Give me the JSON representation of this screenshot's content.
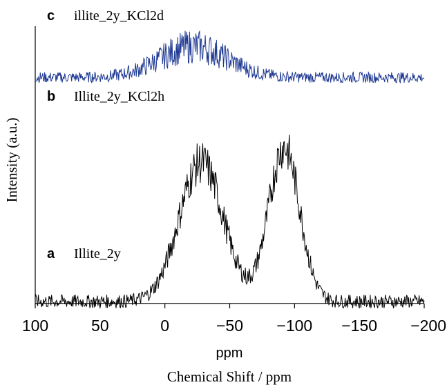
{
  "chart_data": {
    "type": "line",
    "title": "",
    "xlabel": "Chemical Shift / ppm",
    "x_unit_label": "ppm",
    "ylabel": "Intensity (a.u.)",
    "xlim": [
      100,
      -200
    ],
    "x_reversed": true,
    "x_ticks": [
      100,
      50,
      0,
      -50,
      -100,
      -150,
      -200
    ],
    "x_tick_labels": [
      "100",
      "50",
      "0",
      "−50",
      "−100",
      "−150",
      "−200"
    ],
    "y_ticks_shown": false,
    "grid": false,
    "stacked_spectra": true,
    "series": [
      {
        "letter": "c",
        "name": "illite_2y_KCl2d",
        "color": "#d62728",
        "baseline_level": 0.92,
        "peaks": [],
        "noise": 0.01,
        "x_range": [
          100,
          -200
        ]
      },
      {
        "letter": "b",
        "name": "Illite_2y_KCl2h",
        "color": "#1f3a93",
        "baseline_level": 0.58,
        "peaks": [
          {
            "center": -22,
            "height": 0.08,
            "width": 26
          }
        ],
        "noise": 0.028,
        "x_range": [
          100,
          -200
        ]
      },
      {
        "letter": "a",
        "name": "Illite_2y",
        "color": "#000000",
        "baseline_level": 0.0,
        "peaks": [
          {
            "center": -28,
            "height": 0.36,
            "width": 17
          },
          {
            "center": -92,
            "height": 0.4,
            "width": 12
          }
        ],
        "noise": 0.035,
        "x_range": [
          100,
          -200
        ]
      }
    ]
  }
}
